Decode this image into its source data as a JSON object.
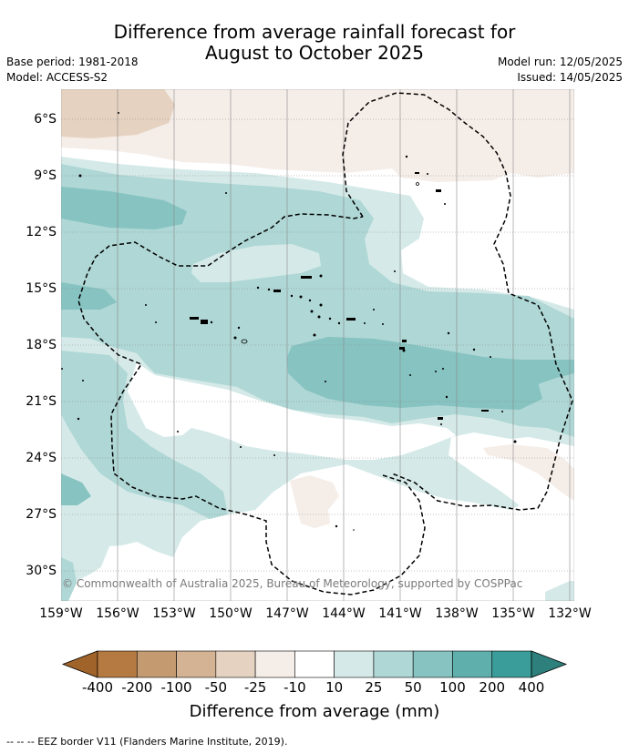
{
  "title_line1": "Difference from average rainfall forecast for",
  "title_line2": "August to October 2025",
  "base_period": "Base period: 1981-2018",
  "model": "Model: ACCESS-S2",
  "model_run": "Model run: 12/05/2025",
  "issued": "Issued: 14/05/2025",
  "copyright": "© Commonwealth of Australia 2025, Bureau of Meteorology, supported by COSPPac",
  "lat_labels": [
    "6°S",
    "9°S",
    "12°S",
    "15°S",
    "18°S",
    "21°S",
    "24°S",
    "27°S",
    "30°S"
  ],
  "lon_labels": [
    "159°W",
    "156°W",
    "153°W",
    "150°W",
    "147°W",
    "144°W",
    "141°W",
    "138°W",
    "135°W",
    "132°W"
  ],
  "colorbar": {
    "labels": [
      "-400",
      "-200",
      "-100",
      "-50",
      "-25",
      "-10",
      "10",
      "25",
      "50",
      "100",
      "200",
      "400"
    ],
    "colors": [
      "#a0632a",
      "#b47a42",
      "#c49a70",
      "#d4b394",
      "#e5d2c0",
      "#f5ede8",
      "#ffffff",
      "#d5eae8",
      "#aed7d5",
      "#86c3c1",
      "#5fb0ad",
      "#3a9d99",
      "#2d807c"
    ],
    "title": "Difference from average (mm)"
  },
  "eez_note": "--  --  -- EEZ border V11 (Flanders Marine Institute, 2019)."
}
